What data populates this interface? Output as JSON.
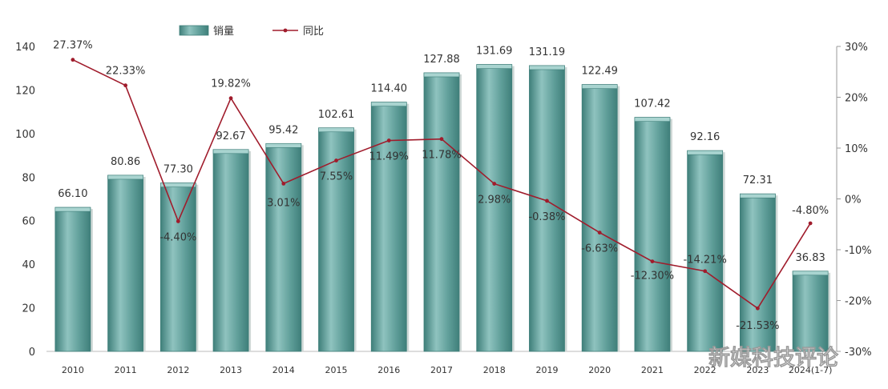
{
  "chart_data": {
    "type": "bar",
    "categories": [
      "2010",
      "2011",
      "2012",
      "2013",
      "2014",
      "2015",
      "2016",
      "2017",
      "2018",
      "2019",
      "2020",
      "2021",
      "2022",
      "2023",
      "2024(1-7)"
    ],
    "series": [
      {
        "name": "销量",
        "type": "bar",
        "values": [
          66.1,
          80.86,
          77.3,
          92.67,
          95.42,
          102.61,
          114.4,
          127.88,
          131.69,
          131.19,
          122.49,
          107.42,
          92.16,
          72.31,
          36.83
        ],
        "labels": [
          "66.10",
          "80.86",
          "77.30",
          "92.67",
          "95.42",
          "102.61",
          "114.40",
          "127.88",
          "131.69",
          "131.19",
          "122.49",
          "107.42",
          "92.16",
          "72.31",
          "36.83"
        ]
      },
      {
        "name": "同比",
        "type": "line",
        "axis": "right",
        "values": [
          27.37,
          22.33,
          -4.4,
          19.82,
          3.01,
          7.55,
          11.49,
          11.78,
          2.98,
          -0.38,
          -6.63,
          -12.3,
          -14.21,
          -21.53,
          -4.8
        ],
        "labels": [
          "27.37%",
          "22.33%",
          "-4.40%",
          "19.82%",
          "3.01%",
          "7.55%",
          "11.49%",
          "11.78%",
          "2.98%",
          "-0.38%",
          "-6.63%",
          "-12.30%",
          "-14.21%",
          "-21.53%",
          "-4.80%"
        ]
      }
    ],
    "y_left": {
      "min": 0,
      "max": 140,
      "ticks": [
        "0",
        "20",
        "40",
        "60",
        "80",
        "100",
        "120",
        "140"
      ]
    },
    "y_right": {
      "min": -30,
      "max": 30,
      "ticks": [
        "-30%",
        "-20%",
        "-10%",
        "0%",
        "10%",
        "20%",
        "30%"
      ]
    },
    "legend_position": "top-left",
    "grid": false,
    "colors": {
      "bar": "#5f9e99",
      "bar_dark": "#3f7f7a",
      "line": "#a01c2c"
    }
  },
  "watermark": "新媒科技评论"
}
